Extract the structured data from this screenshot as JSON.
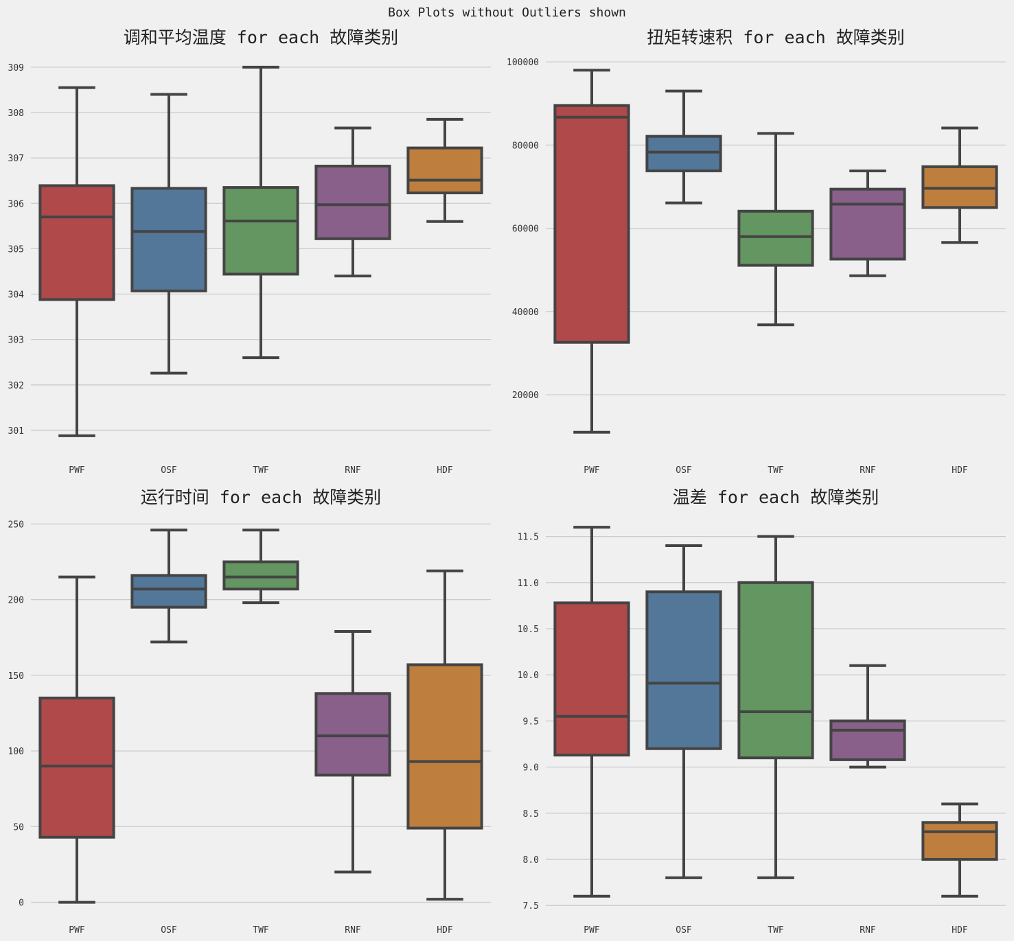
{
  "suptitle": "Box Plots without Outliers shown",
  "colors": {
    "background": "#f0f0f0",
    "grid": "#cbcbcb",
    "box_edge": "#444444",
    "palette": [
      "#b0494a",
      "#537799",
      "#639660",
      "#88608a",
      "#be7e3e"
    ]
  },
  "chart_data": [
    {
      "type": "box",
      "title": "调和平均温度 for each 故障类别",
      "categories": [
        "PWF",
        "OSF",
        "TWF",
        "RNF",
        "HDF"
      ],
      "ylim": [
        300.5,
        309.3
      ],
      "yticks": [
        301,
        302,
        303,
        304,
        305,
        306,
        307,
        308,
        309
      ],
      "ytick_labels": [
        "301",
        "302",
        "303",
        "304",
        "305",
        "306",
        "307",
        "308",
        "309"
      ],
      "grid": true,
      "boxes": [
        {
          "whislo": 300.88,
          "q1": 303.88,
          "med": 305.7,
          "q3": 306.39,
          "whishi": 308.55
        },
        {
          "whislo": 302.26,
          "q1": 304.07,
          "med": 305.38,
          "q3": 306.33,
          "whishi": 308.4
        },
        {
          "whislo": 302.6,
          "q1": 304.44,
          "med": 305.61,
          "q3": 306.35,
          "whishi": 309.0
        },
        {
          "whislo": 304.4,
          "q1": 305.22,
          "med": 305.97,
          "q3": 306.82,
          "whishi": 307.66
        },
        {
          "whislo": 305.6,
          "q1": 306.23,
          "med": 306.51,
          "q3": 307.22,
          "whishi": 307.85
        }
      ]
    },
    {
      "type": "box",
      "title": "扭矩转速积 for each 故障类别",
      "categories": [
        "PWF",
        "OSF",
        "TWF",
        "RNF",
        "HDF"
      ],
      "ylim": [
        6000,
        102000
      ],
      "yticks": [
        20000,
        40000,
        60000,
        80000,
        100000
      ],
      "ytick_labels": [
        "20000",
        "40000",
        "60000",
        "80000",
        "100000"
      ],
      "grid": true,
      "boxes": [
        {
          "whislo": 11000,
          "q1": 32600,
          "med": 86700,
          "q3": 89500,
          "whishi": 98000
        },
        {
          "whislo": 66100,
          "q1": 73800,
          "med": 78300,
          "q3": 82100,
          "whishi": 93000
        },
        {
          "whislo": 36800,
          "q1": 51100,
          "med": 58000,
          "q3": 64100,
          "whishi": 82800
        },
        {
          "whislo": 48600,
          "q1": 52600,
          "med": 65800,
          "q3": 69400,
          "whishi": 73800
        },
        {
          "whislo": 56600,
          "q1": 65000,
          "med": 69600,
          "q3": 74800,
          "whishi": 84100
        }
      ]
    },
    {
      "type": "box",
      "title": "运行时间 for each 故障类别",
      "categories": [
        "PWF",
        "OSF",
        "TWF",
        "RNF",
        "HDF"
      ],
      "ylim": [
        -7,
        257
      ],
      "yticks": [
        0,
        50,
        100,
        150,
        200,
        250
      ],
      "ytick_labels": [
        "0",
        "50",
        "100",
        "150",
        "200",
        "250"
      ],
      "grid": true,
      "boxes": [
        {
          "whislo": 0,
          "q1": 43,
          "med": 90,
          "q3": 135,
          "whishi": 215
        },
        {
          "whislo": 172,
          "q1": 195,
          "med": 207,
          "q3": 216,
          "whishi": 246
        },
        {
          "whislo": 198,
          "q1": 207,
          "med": 215,
          "q3": 225,
          "whishi": 246
        },
        {
          "whislo": 20,
          "q1": 84,
          "med": 110,
          "q3": 138,
          "whishi": 179
        },
        {
          "whislo": 2,
          "q1": 49,
          "med": 93,
          "q3": 157,
          "whishi": 219
        }
      ]
    },
    {
      "type": "box",
      "title": "温差 for each 故障类别",
      "categories": [
        "PWF",
        "OSF",
        "TWF",
        "RNF",
        "HDF"
      ],
      "ylim": [
        7.42,
        11.75
      ],
      "yticks": [
        7.5,
        8.0,
        8.5,
        9.0,
        9.5,
        10.0,
        10.5,
        11.0,
        11.5
      ],
      "ytick_labels": [
        "7.5",
        "8.0",
        "8.5",
        "9.0",
        "9.5",
        "10.0",
        "10.5",
        "11.0",
        "11.5"
      ],
      "grid": true,
      "boxes": [
        {
          "whislo": 7.6,
          "q1": 9.13,
          "med": 9.55,
          "q3": 10.78,
          "whishi": 11.6
        },
        {
          "whislo": 7.8,
          "q1": 9.2,
          "med": 9.91,
          "q3": 10.9,
          "whishi": 11.4
        },
        {
          "whislo": 7.8,
          "q1": 9.1,
          "med": 9.6,
          "q3": 11.0,
          "whishi": 11.5
        },
        {
          "whislo": 9.0,
          "q1": 9.08,
          "med": 9.4,
          "q3": 9.5,
          "whishi": 10.1
        },
        {
          "whislo": 7.6,
          "q1": 8.0,
          "med": 8.3,
          "q3": 8.4,
          "whishi": 8.6
        }
      ]
    }
  ]
}
